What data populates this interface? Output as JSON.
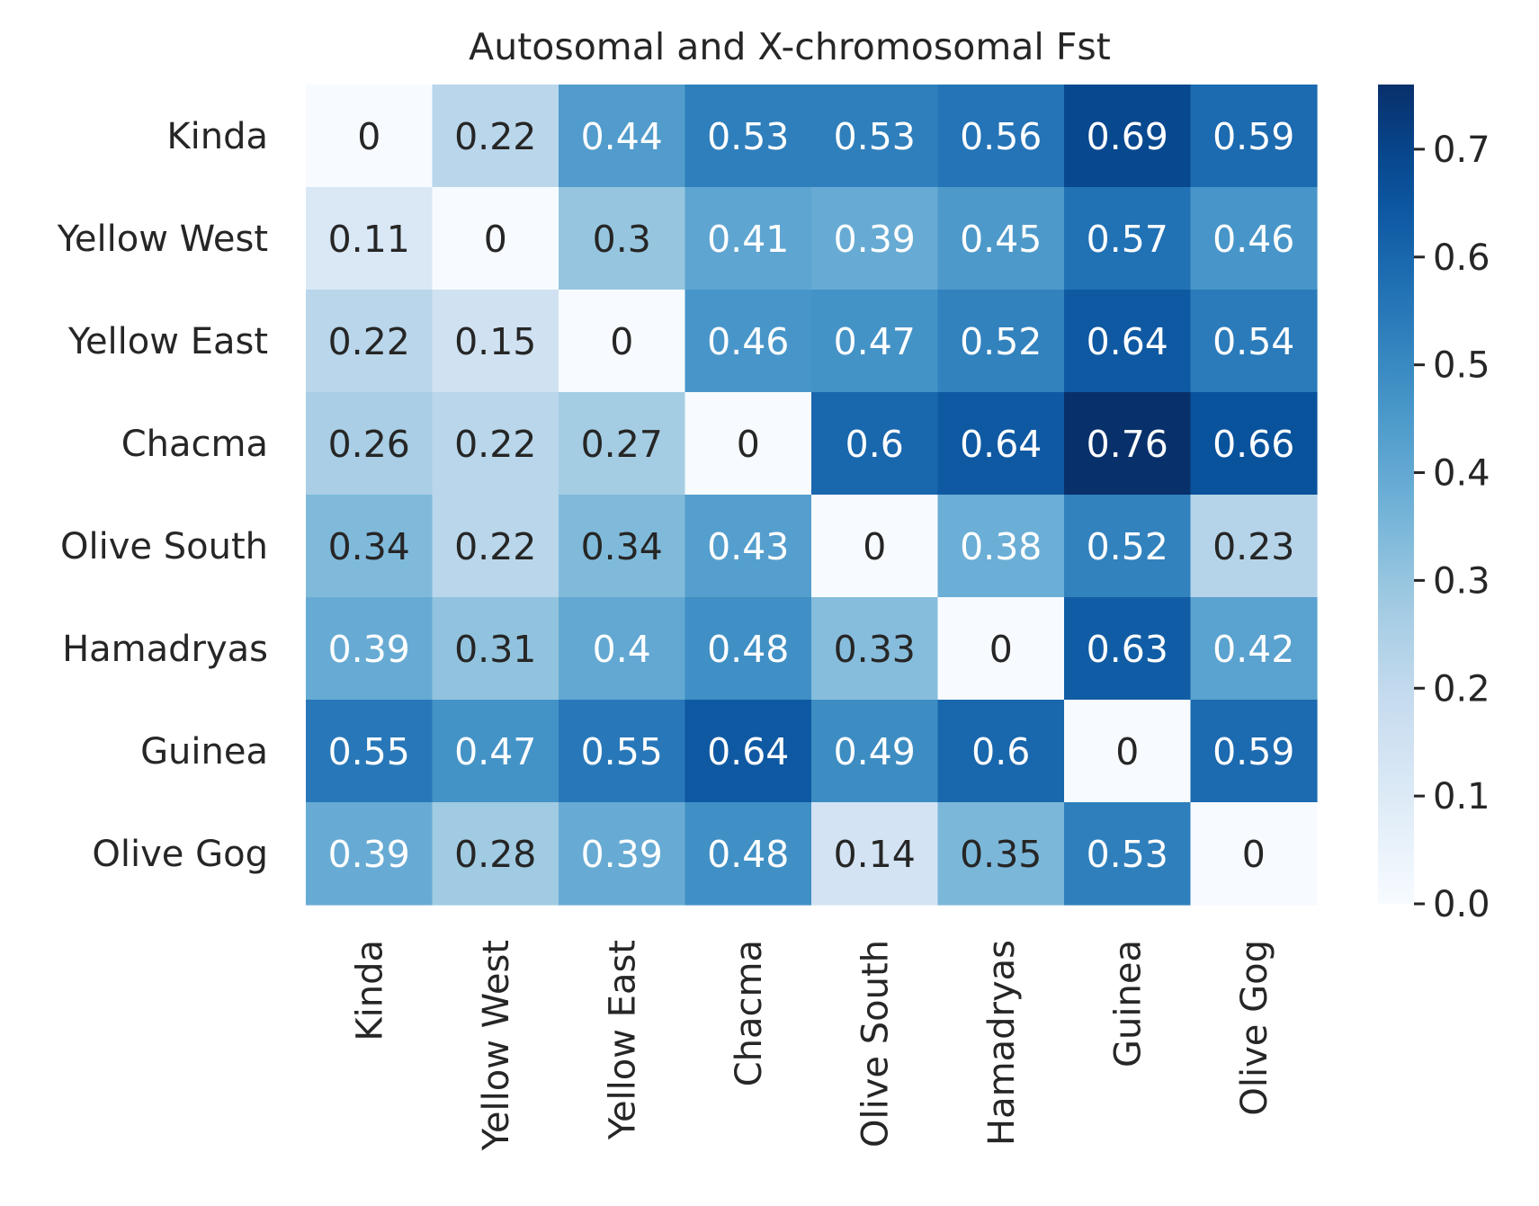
{
  "chart_data": {
    "type": "heatmap",
    "title": "Autosomal and X-chromosomal Fst",
    "row_labels": [
      "Kinda",
      "Yellow West",
      "Yellow East",
      "Chacma",
      "Olive South",
      "Hamadryas",
      "Guinea",
      "Olive Gog"
    ],
    "col_labels": [
      "Kinda",
      "Yellow West",
      "Yellow East",
      "Chacma",
      "Olive South",
      "Hamadryas",
      "Guinea",
      "Olive Gog"
    ],
    "values": [
      [
        0,
        0.22,
        0.44,
        0.53,
        0.53,
        0.56,
        0.69,
        0.59
      ],
      [
        0.11,
        0,
        0.3,
        0.41,
        0.39,
        0.45,
        0.57,
        0.46
      ],
      [
        0.22,
        0.15,
        0,
        0.46,
        0.47,
        0.52,
        0.64,
        0.54
      ],
      [
        0.26,
        0.22,
        0.27,
        0,
        0.6,
        0.64,
        0.76,
        0.66
      ],
      [
        0.34,
        0.22,
        0.34,
        0.43,
        0,
        0.38,
        0.52,
        0.23
      ],
      [
        0.39,
        0.31,
        0.4,
        0.48,
        0.33,
        0,
        0.63,
        0.42
      ],
      [
        0.55,
        0.47,
        0.55,
        0.64,
        0.49,
        0.6,
        0,
        0.59
      ],
      [
        0.39,
        0.28,
        0.39,
        0.48,
        0.14,
        0.35,
        0.53,
        0
      ]
    ],
    "colormap": "Blues",
    "vmin": 0,
    "vmax": 0.76,
    "colorbar_ticks": [
      "0.0",
      "0.1",
      "0.2",
      "0.3",
      "0.4",
      "0.5",
      "0.6",
      "0.7"
    ],
    "annotations": true,
    "colors": {
      "text_dark": "#262626",
      "text_light": "#ffffff",
      "tick": "#262626"
    }
  }
}
